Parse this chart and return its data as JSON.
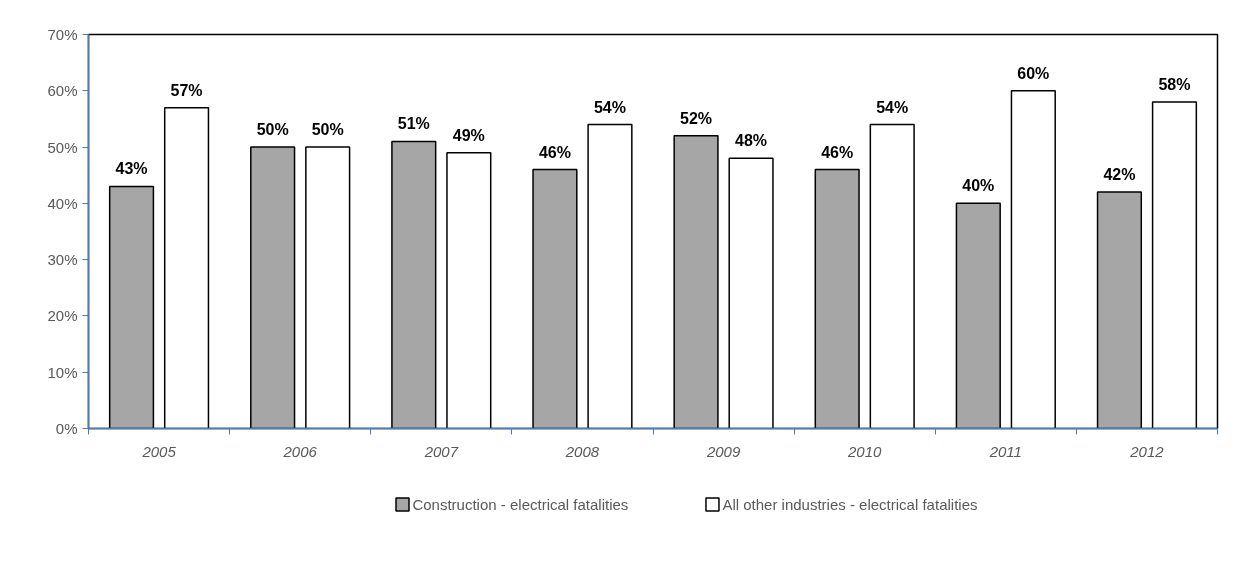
{
  "chart_data": {
    "type": "bar",
    "categories": [
      "2005",
      "2006",
      "2007",
      "2008",
      "2009",
      "2010",
      "2011",
      "2012"
    ],
    "series": [
      {
        "name": "Construction - electrical fatalities",
        "color": "#a6a6a6",
        "values": [
          43,
          50,
          51,
          46,
          52,
          46,
          40,
          42
        ],
        "value_labels": [
          "43%",
          "50%",
          "51%",
          "46%",
          "52%",
          "46%",
          "40%",
          "42%"
        ]
      },
      {
        "name": "All other industries - electrical fatalities",
        "color": "#ffffff",
        "values": [
          57,
          50,
          49,
          54,
          48,
          54,
          60,
          58
        ],
        "value_labels": [
          "57%",
          "50%",
          "49%",
          "54%",
          "48%",
          "54%",
          "60%",
          "58%"
        ]
      }
    ],
    "ylim": [
      0,
      70
    ],
    "yticks": [
      {
        "value": 0,
        "label": "0%"
      },
      {
        "value": 10,
        "label": "10%"
      },
      {
        "value": 20,
        "label": "20%"
      },
      {
        "value": 30,
        "label": "30%"
      },
      {
        "value": 40,
        "label": "40%"
      },
      {
        "value": 50,
        "label": "50%"
      },
      {
        "value": 60,
        "label": "60%"
      },
      {
        "value": 70,
        "label": "70%"
      }
    ],
    "grid": false,
    "legend": "bottom"
  }
}
